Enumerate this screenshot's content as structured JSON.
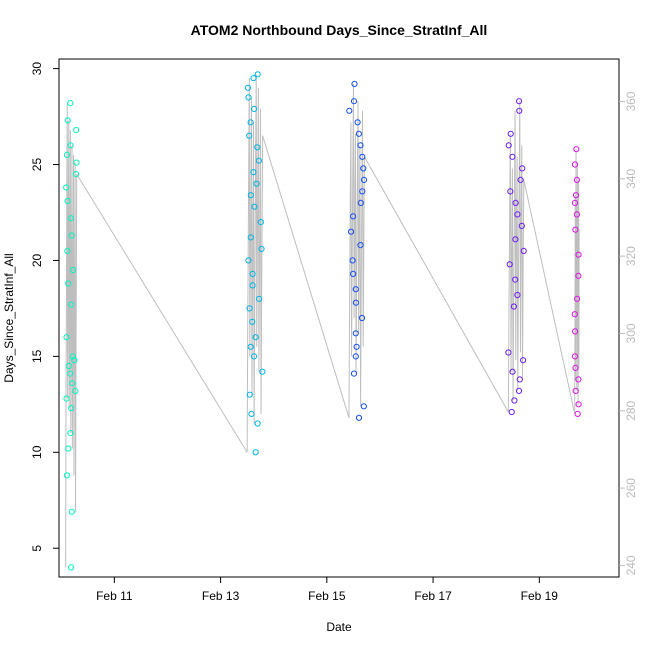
{
  "chart_data": {
    "type": "scatter",
    "title": "ATOM2 Northbound Days_Since_StratInf_All",
    "xlabel": "Date",
    "ylabel": "Days_Since_StratInf_All",
    "xlim": [
      "2014-02-09T23:00",
      "2014-02-20T12:00"
    ],
    "ylim": [
      3.5,
      30.5
    ],
    "y2lim": [
      237,
      371
    ],
    "x_ticks": [
      {
        "date": "2014-02-11",
        "label": "Feb 11"
      },
      {
        "date": "2014-02-13",
        "label": "Feb 13"
      },
      {
        "date": "2014-02-15",
        "label": "Feb 15"
      },
      {
        "date": "2014-02-17",
        "label": "Feb 17"
      },
      {
        "date": "2014-02-19",
        "label": "Feb 19"
      }
    ],
    "y_ticks": [
      5,
      10,
      15,
      20,
      25,
      30
    ],
    "y2_ticks": [
      240,
      260,
      280,
      300,
      320,
      340,
      360
    ],
    "grid": false,
    "legend": "none",
    "marker": "open-circle",
    "point_colors_description": "hue gradient over time: cyan-green to light blue to blue to violet to magenta",
    "line_color": "#bebebe",
    "clusters": [
      {
        "start": "2014-02-10T02:00",
        "end": "2014-02-10T07:00",
        "color": "#00f5c0",
        "values": [
          4.0,
          6.9,
          8.8,
          10.2,
          11.0,
          12.3,
          12.8,
          13.2,
          13.6,
          14.1,
          14.5,
          14.8,
          15.0,
          16.0,
          17.7,
          18.8,
          19.5,
          20.5,
          21.3,
          22.2,
          23.1,
          23.8,
          24.5,
          25.1,
          25.5,
          26.0,
          26.8,
          27.3,
          28.2
        ]
      },
      {
        "start": "2014-02-13T12:00",
        "end": "2014-02-13T19:00",
        "color": "#00b4e6",
        "values": [
          10.0,
          11.5,
          12.0,
          13.0,
          14.2,
          15.0,
          15.5,
          16.0,
          16.8,
          17.5,
          18.0,
          18.7,
          19.3,
          20.0,
          20.6,
          21.2,
          22.0,
          22.8,
          23.4,
          24.0,
          24.6,
          25.2,
          25.9,
          26.5,
          27.2,
          27.9,
          28.5,
          29.0,
          29.5,
          29.7
        ]
      },
      {
        "start": "2014-02-15T10:00",
        "end": "2014-02-15T17:00",
        "color": "#1450f0",
        "values": [
          11.8,
          12.4,
          14.1,
          15.0,
          15.5,
          16.2,
          17.0,
          17.8,
          18.5,
          19.3,
          20.0,
          20.8,
          21.5,
          22.3,
          23.0,
          23.6,
          24.2,
          24.8,
          25.4,
          26.0,
          26.6,
          27.2,
          27.8,
          28.3,
          29.2
        ]
      },
      {
        "start": "2014-02-18T10:00",
        "end": "2014-02-18T17:00",
        "color": "#6e1ef0",
        "values": [
          12.1,
          12.7,
          13.2,
          13.8,
          14.2,
          14.8,
          15.2,
          17.6,
          18.2,
          19.0,
          19.8,
          20.5,
          21.1,
          21.8,
          22.4,
          23.0,
          23.6,
          24.2,
          24.8,
          25.4,
          26.0,
          26.6,
          27.8,
          28.3
        ]
      },
      {
        "start": "2014-02-19T16:00",
        "end": "2014-02-19T18:00",
        "color": "#dc14e6",
        "values": [
          12.0,
          12.5,
          13.2,
          13.8,
          14.4,
          15.0,
          16.3,
          17.2,
          18.0,
          19.2,
          20.3,
          21.6,
          22.4,
          23.0,
          23.4,
          24.2,
          25.0,
          25.8
        ]
      }
    ]
  }
}
